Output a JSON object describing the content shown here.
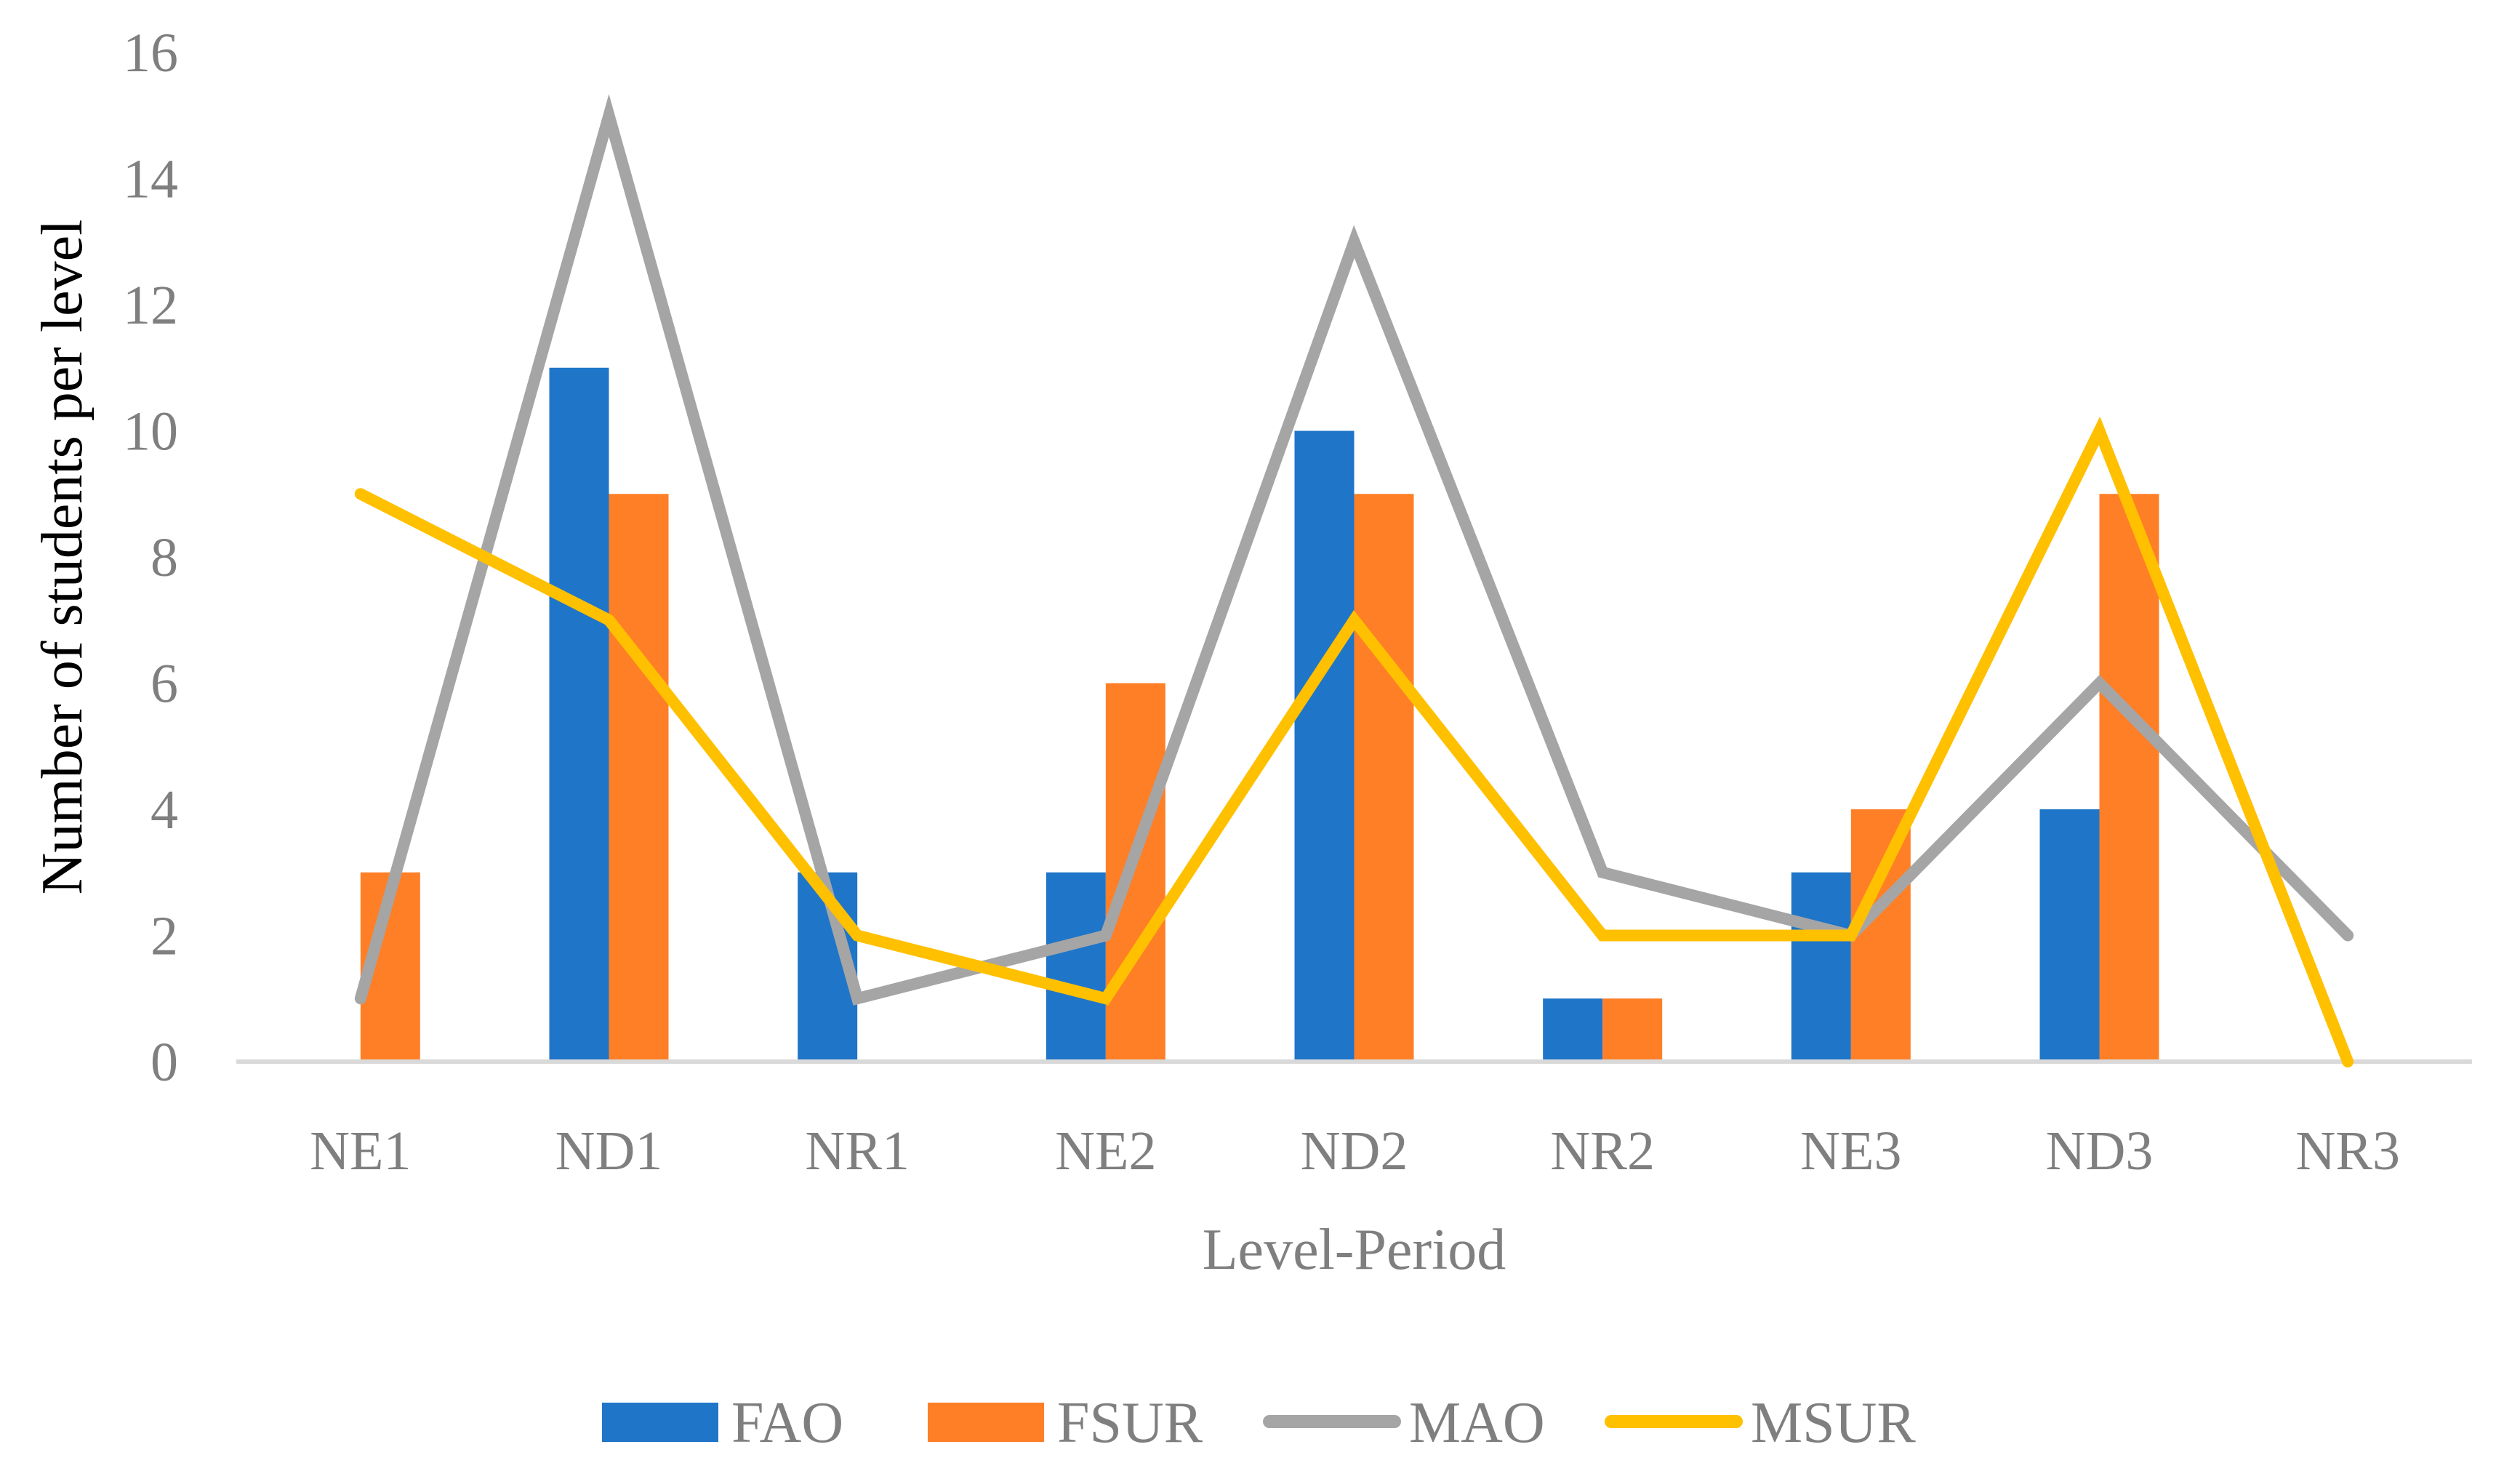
{
  "chart_data": {
    "type": "bar",
    "title": "",
    "xlabel": "Level-Period",
    "ylabel": "Number of students per level",
    "categories": [
      "NE1",
      "ND1",
      "NR1",
      "NE2",
      "ND2",
      "NR2",
      "NE3",
      "ND3",
      "NR3"
    ],
    "ylim": [
      0,
      16
    ],
    "yticks": [
      0,
      2,
      4,
      6,
      8,
      10,
      12,
      14,
      16
    ],
    "grid": false,
    "legend_position": "bottom",
    "series": [
      {
        "name": "FAO",
        "kind": "bar",
        "color": "#1f75c8",
        "values": [
          0,
          11,
          3,
          3,
          10,
          1,
          3,
          4,
          0
        ]
      },
      {
        "name": "FSUR",
        "kind": "bar",
        "color": "#ff7f27",
        "values": [
          3,
          9,
          0,
          6,
          9,
          1,
          4,
          9,
          0
        ]
      },
      {
        "name": "MAO",
        "kind": "line",
        "color": "#a5a5a5",
        "values": [
          1,
          15,
          1,
          2,
          13,
          3,
          2,
          6,
          2
        ]
      },
      {
        "name": "MSUR",
        "kind": "line",
        "color": "#ffc000",
        "values": [
          9,
          7,
          2,
          1,
          7,
          2,
          2,
          10,
          0
        ]
      }
    ]
  }
}
